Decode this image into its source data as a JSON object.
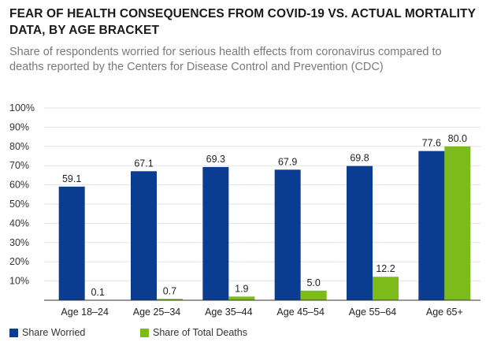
{
  "chart_data": {
    "type": "bar",
    "title": "FEAR OF HEALTH CONSEQUENCES FROM COVID-19 VS. ACTUAL MORTALITY DATA, BY AGE BRACKET",
    "subtitle": "Share of respondents worried for serious health effects from coronavirus compared to deaths reported by the Centers for Disease Control and Prevention (CDC)",
    "categories": [
      "Age 18–24",
      "Age 25–34",
      "Age 35–44",
      "Age 45–54",
      "Age 55–64",
      "Age 65+"
    ],
    "series": [
      {
        "name": "Share Worried",
        "color": "#0a3d91",
        "values": [
          59.1,
          67.1,
          69.3,
          67.9,
          69.8,
          77.6
        ]
      },
      {
        "name": "Share of Total Deaths",
        "color": "#7dbb1b",
        "values": [
          0.1,
          0.7,
          1.9,
          5.0,
          12.2,
          80.0
        ]
      }
    ],
    "ylim": [
      0,
      100
    ],
    "yticks": [
      "10%",
      "20%",
      "30%",
      "40%",
      "50%",
      "60%",
      "70%",
      "80%",
      "90%",
      "100%"
    ],
    "ytick_values": [
      10,
      20,
      30,
      40,
      50,
      60,
      70,
      80,
      90,
      100
    ],
    "grid": true,
    "legend_position": "bottom-left"
  }
}
